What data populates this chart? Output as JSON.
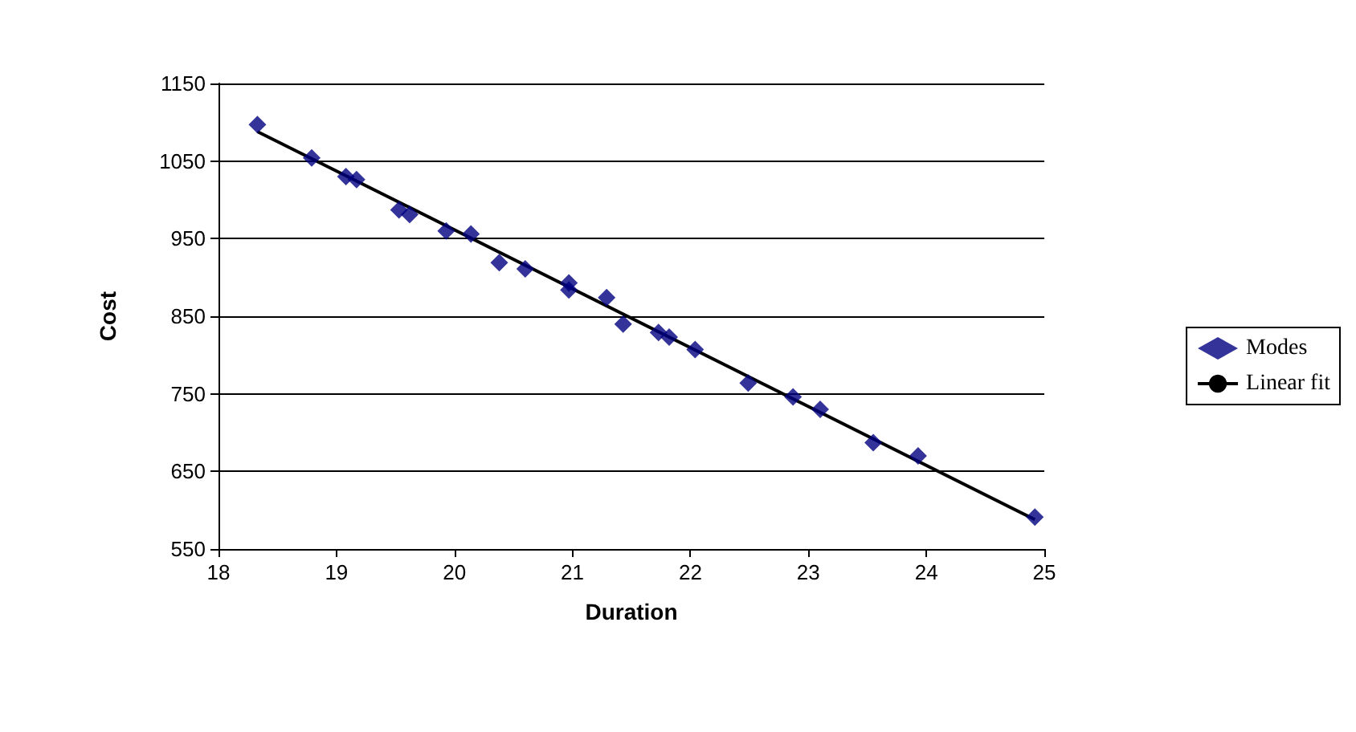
{
  "chart_data": {
    "type": "scatter",
    "xlabel": "Duration",
    "ylabel": "Cost",
    "xlim": [
      18,
      25
    ],
    "ylim": [
      550,
      1150
    ],
    "xticks": [
      18,
      19,
      20,
      21,
      22,
      23,
      24,
      25
    ],
    "yticks": [
      550,
      650,
      750,
      850,
      950,
      1050,
      1150
    ],
    "grid": "y",
    "legend": "right",
    "marker": "diamond",
    "series": [
      {
        "name": "Modes",
        "color": "#000080",
        "x": [
          18.33,
          18.79,
          19.08,
          19.17,
          19.53,
          19.62,
          19.93,
          20.14,
          20.38,
          20.6,
          20.97,
          20.97,
          21.29,
          21.43,
          21.73,
          21.82,
          22.04,
          22.49,
          22.87,
          23.1,
          23.55,
          23.93,
          24.92
        ],
        "values": [
          1097,
          1054,
          1030,
          1026,
          987,
          981,
          960,
          956,
          919,
          911,
          893,
          884,
          874,
          840,
          829,
          823,
          807,
          764,
          746,
          730,
          687,
          670,
          591
        ]
      },
      {
        "name": "Linear fit",
        "type": "line",
        "color": "#000000",
        "marker": "none",
        "x": [
          18.33,
          24.92
        ],
        "values": [
          1088,
          588
        ]
      }
    ]
  }
}
